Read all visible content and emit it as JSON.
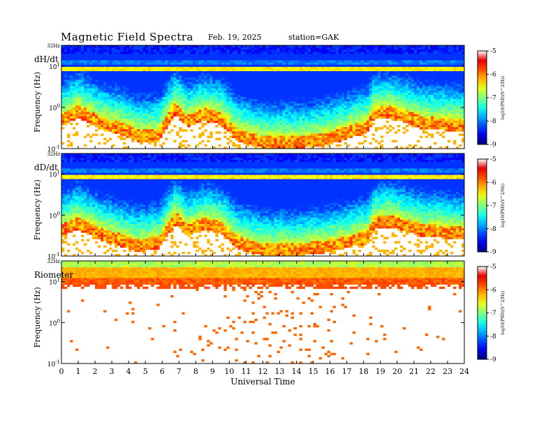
{
  "header": {
    "title": "Magnetic  Field  Spectra",
    "date": "Feb. 19, 2025",
    "station": "station=GAK"
  },
  "chart_data": [
    {
      "type": "heatmap",
      "panel_label": "dH/dt",
      "ylabel": "Frequency  (Hz)",
      "yscale": "log",
      "ylim": [
        0.1,
        32
      ],
      "y_ticks": [
        {
          "label": "32Hz",
          "value": 32
        },
        {
          "label": "10",
          "exp": "1",
          "value": 10
        },
        {
          "label": "10",
          "exp": "0",
          "value": 1
        },
        {
          "label": "10",
          "exp": "-1",
          "value": 0.1
        }
      ],
      "xlim": [
        0,
        24
      ],
      "activity_profile": [
        {
          "x": 0.0,
          "f": 0.7
        },
        {
          "x": 1.0,
          "f": 1.1
        },
        {
          "x": 1.5,
          "f": 0.9
        },
        {
          "x": 2.5,
          "f": 0.55
        },
        {
          "x": 3.5,
          "f": 0.45
        },
        {
          "x": 4.5,
          "f": 0.3
        },
        {
          "x": 5.8,
          "f": 0.3
        },
        {
          "x": 6.8,
          "f": 1.3
        },
        {
          "x": 7.5,
          "f": 0.65
        },
        {
          "x": 8.5,
          "f": 0.95
        },
        {
          "x": 9.5,
          "f": 0.75
        },
        {
          "x": 10.5,
          "f": 0.3
        },
        {
          "x": 12.0,
          "f": 0.2
        },
        {
          "x": 14.0,
          "f": 0.2
        },
        {
          "x": 16.0,
          "f": 0.25
        },
        {
          "x": 17.5,
          "f": 0.4
        },
        {
          "x": 18.2,
          "f": 0.45
        },
        {
          "x": 18.6,
          "f": 1.0
        },
        {
          "x": 19.5,
          "f": 1.1
        },
        {
          "x": 20.5,
          "f": 0.85
        },
        {
          "x": 21.5,
          "f": 0.6
        },
        {
          "x": 23.0,
          "f": 0.55
        },
        {
          "x": 24.0,
          "f": 0.5
        }
      ],
      "colorbar": {
        "min": -9,
        "max": -5,
        "ticks": [
          "-5",
          "-6",
          "-7",
          "-8",
          "-9"
        ],
        "label": "log10(PSD)(V^2/Hz)"
      }
    },
    {
      "type": "heatmap",
      "panel_label": "dD/dt",
      "ylabel": "Frequency  (Hz)",
      "yscale": "log",
      "ylim": [
        0.1,
        32
      ],
      "y_ticks": [
        {
          "label": "32Hz",
          "value": 32
        },
        {
          "label": "10",
          "exp": "1",
          "value": 10
        },
        {
          "label": "10",
          "exp": "0",
          "value": 1
        },
        {
          "label": "10",
          "exp": "-1",
          "value": 0.1
        }
      ],
      "xlim": [
        0,
        24
      ],
      "activity_profile": [
        {
          "x": 0.0,
          "f": 0.6
        },
        {
          "x": 1.0,
          "f": 0.9
        },
        {
          "x": 1.5,
          "f": 0.7
        },
        {
          "x": 2.5,
          "f": 0.45
        },
        {
          "x": 3.5,
          "f": 0.35
        },
        {
          "x": 4.5,
          "f": 0.25
        },
        {
          "x": 5.8,
          "f": 0.3
        },
        {
          "x": 6.8,
          "f": 1.2
        },
        {
          "x": 7.5,
          "f": 0.6
        },
        {
          "x": 8.5,
          "f": 0.9
        },
        {
          "x": 9.5,
          "f": 0.7
        },
        {
          "x": 10.5,
          "f": 0.3
        },
        {
          "x": 12.0,
          "f": 0.2
        },
        {
          "x": 14.0,
          "f": 0.2
        },
        {
          "x": 16.0,
          "f": 0.25
        },
        {
          "x": 17.5,
          "f": 0.35
        },
        {
          "x": 18.2,
          "f": 0.4
        },
        {
          "x": 18.6,
          "f": 0.9
        },
        {
          "x": 19.5,
          "f": 1.0
        },
        {
          "x": 20.5,
          "f": 0.8
        },
        {
          "x": 21.5,
          "f": 0.6
        },
        {
          "x": 23.0,
          "f": 0.55
        },
        {
          "x": 24.0,
          "f": 0.5
        }
      ],
      "colorbar": {
        "min": -9,
        "max": -5,
        "ticks": [
          "-5",
          "-6",
          "-7",
          "-8",
          "-9"
        ],
        "label": "log10(PSD)(V^2/Hz)"
      }
    },
    {
      "type": "heatmap",
      "panel_label": "Riometer",
      "ylabel": "Frequency  (Hz)",
      "yscale": "log",
      "ylim": [
        0.1,
        32
      ],
      "y_ticks": [
        {
          "label": "32Hz",
          "value": 32
        },
        {
          "label": "10",
          "exp": "1",
          "value": 10
        },
        {
          "label": "10",
          "exp": "0",
          "value": 1
        },
        {
          "label": "10",
          "exp": "-1",
          "value": 0.1
        }
      ],
      "xlim": [
        0,
        24
      ],
      "xlabel": "Universal Time",
      "x_ticks": [
        "0",
        "1",
        "2",
        "3",
        "4",
        "5",
        "6",
        "7",
        "8",
        "9",
        "10",
        "11",
        "12",
        "13",
        "14",
        "15",
        "16",
        "17",
        "18",
        "19",
        "20",
        "21",
        "22",
        "23",
        "24"
      ],
      "colorbar": {
        "min": -9,
        "max": -5,
        "ticks": [
          "-5",
          "-6",
          "-7",
          "-8",
          "-9"
        ],
        "label": "log10(PSD)(V^2/Hz)"
      }
    }
  ]
}
